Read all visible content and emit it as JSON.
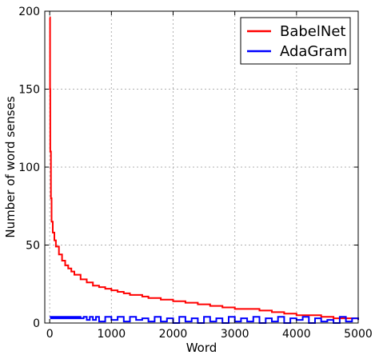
{
  "chart_data": {
    "type": "line",
    "title": "",
    "xlabel": "Word",
    "ylabel": "Number of word senses",
    "xlim": [
      -80,
      5000
    ],
    "ylim": [
      0,
      200
    ],
    "xticks": [
      0,
      1000,
      2000,
      3000,
      4000,
      5000
    ],
    "yticks": [
      0,
      50,
      100,
      150,
      200
    ],
    "grid": true,
    "legend_position": "top-right",
    "series": [
      {
        "name": "BabelNet",
        "color": "#ff0000",
        "x": [
          0,
          5,
          10,
          20,
          30,
          50,
          75,
          100,
          150,
          200,
          250,
          300,
          350,
          400,
          500,
          600,
          700,
          800,
          900,
          1000,
          1100,
          1200,
          1300,
          1400,
          1500,
          1600,
          1800,
          2000,
          2200,
          2400,
          2600,
          2800,
          3000,
          3200,
          3400,
          3600,
          3800,
          4000,
          4200,
          4400,
          4600,
          4800,
          5000
        ],
        "values": [
          196,
          150,
          110,
          80,
          65,
          58,
          53,
          49,
          44,
          40,
          37,
          35,
          33,
          31,
          28,
          26,
          24,
          23,
          22,
          21,
          20,
          19,
          18,
          18,
          17,
          16,
          15,
          14,
          13,
          12,
          11,
          10,
          9,
          9,
          8,
          7,
          6,
          5,
          5,
          4,
          3,
          3,
          2
        ]
      },
      {
        "name": "AdaGram",
        "color": "#0000ff",
        "x": [
          0,
          20,
          40,
          60,
          80,
          100,
          120,
          140,
          160,
          180,
          200,
          220,
          240,
          260,
          280,
          300,
          320,
          340,
          360,
          380,
          400,
          420,
          440,
          460,
          480,
          500,
          550,
          600,
          650,
          700,
          750,
          800,
          900,
          1000,
          1100,
          1200,
          1300,
          1400,
          1500,
          1600,
          1700,
          1800,
          1900,
          2000,
          2100,
          2200,
          2300,
          2400,
          2500,
          2600,
          2700,
          2800,
          2900,
          3000,
          3100,
          3200,
          3300,
          3400,
          3500,
          3600,
          3700,
          3800,
          3900,
          4000,
          4100,
          4200,
          4300,
          4400,
          4500,
          4600,
          4700,
          4800,
          4900,
          5000
        ],
        "values": [
          4,
          3,
          4,
          3,
          4,
          3,
          4,
          3,
          4,
          3,
          4,
          3,
          4,
          3,
          4,
          3,
          4,
          3,
          4,
          3,
          4,
          3,
          4,
          3,
          4,
          3,
          4,
          2,
          4,
          2,
          4,
          1,
          4,
          2,
          4,
          1,
          4,
          2,
          3,
          1,
          4,
          1,
          3,
          0,
          4,
          1,
          3,
          0,
          4,
          1,
          3,
          0,
          4,
          1,
          3,
          1,
          4,
          0,
          3,
          1,
          4,
          0,
          3,
          2,
          4,
          0,
          3,
          1,
          2,
          0,
          4,
          1,
          3,
          2
        ]
      }
    ]
  }
}
